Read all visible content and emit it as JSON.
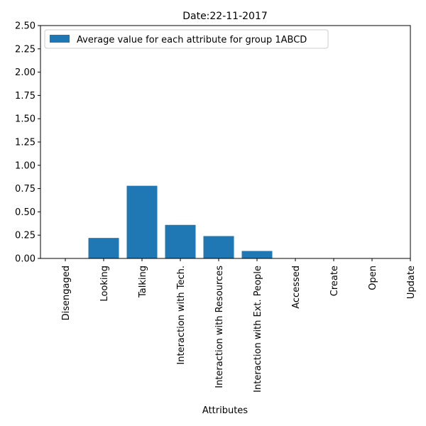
{
  "chart_data": {
    "type": "bar",
    "title": "Date:22-11-2017",
    "xlabel": "Attributes",
    "ylabel": "",
    "categories": [
      "Disengaged",
      "Looking",
      "Talking",
      "Interaction with Tech.",
      "Interaction with Resources",
      "Interaction with Ext. People",
      "Accessed",
      "Create",
      "Open",
      "Update"
    ],
    "series": [
      {
        "name": "Average value for each attribute for group 1ABCD",
        "values": [
          0.0,
          0.22,
          0.78,
          0.36,
          0.24,
          0.08,
          0.0,
          0.0,
          0.0,
          0.0
        ]
      }
    ],
    "ylim": [
      0,
      2.5
    ],
    "yticks": [
      "0.00",
      "0.25",
      "0.50",
      "0.75",
      "1.00",
      "1.25",
      "1.50",
      "1.75",
      "2.00",
      "2.25",
      "2.50"
    ],
    "grid": false,
    "legend_position": "top-left",
    "colors": {
      "bar": "#1f77b4"
    }
  }
}
